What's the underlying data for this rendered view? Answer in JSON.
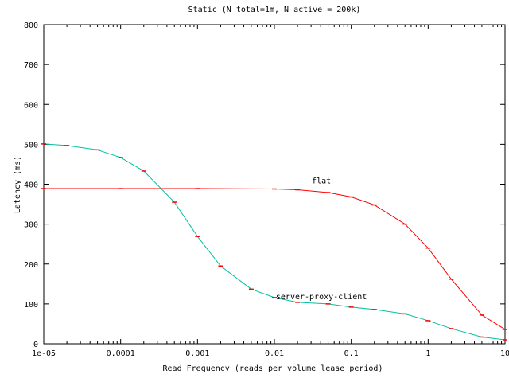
{
  "chart_data": {
    "type": "line",
    "title": "Static (N total=1m, N active = 200k)",
    "xlabel": "Read Frequency (reads per volume lease period)",
    "ylabel": "Latency (ms)",
    "x_scale": "log",
    "xlim": [
      1e-05,
      10
    ],
    "ylim": [
      0,
      800
    ],
    "x_ticks": [
      {
        "value": 1e-05,
        "label": "1e-05"
      },
      {
        "value": 0.0001,
        "label": "0.0001"
      },
      {
        "value": 0.001,
        "label": "0.001"
      },
      {
        "value": 0.01,
        "label": "0.01"
      },
      {
        "value": 0.1,
        "label": "0.1"
      },
      {
        "value": 1,
        "label": "1"
      },
      {
        "value": 10,
        "label": "10"
      }
    ],
    "y_ticks": [
      {
        "value": 0,
        "label": "0"
      },
      {
        "value": 100,
        "label": "100"
      },
      {
        "value": 200,
        "label": "200"
      },
      {
        "value": 300,
        "label": "300"
      },
      {
        "value": 400,
        "label": "400"
      },
      {
        "value": 500,
        "label": "500"
      },
      {
        "value": 600,
        "label": "600"
      },
      {
        "value": 700,
        "label": "700"
      },
      {
        "value": 800,
        "label": "800"
      }
    ],
    "grid": false,
    "series": [
      {
        "name": "flat",
        "color": "#ff0000",
        "label_anchor": {
          "x": 0.02,
          "y": 410
        },
        "points": [
          {
            "x": 1e-05,
            "y": 389
          },
          {
            "x": 0.0001,
            "y": 389
          },
          {
            "x": 0.001,
            "y": 389
          },
          {
            "x": 0.01,
            "y": 388
          },
          {
            "x": 0.02,
            "y": 386
          },
          {
            "x": 0.05,
            "y": 379
          },
          {
            "x": 0.1,
            "y": 368
          },
          {
            "x": 0.2,
            "y": 348
          },
          {
            "x": 0.5,
            "y": 300
          },
          {
            "x": 1,
            "y": 240
          },
          {
            "x": 2,
            "y": 162
          },
          {
            "x": 5,
            "y": 72
          },
          {
            "x": 10,
            "y": 36
          }
        ]
      },
      {
        "name": "server-proxy-client",
        "color": "#00c0a0",
        "marker_color": "#ff0000",
        "label_anchor": {
          "x": 0.02,
          "y": 120
        },
        "points": [
          {
            "x": 1e-05,
            "y": 501
          },
          {
            "x": 2e-05,
            "y": 497
          },
          {
            "x": 5e-05,
            "y": 486
          },
          {
            "x": 0.0001,
            "y": 467
          },
          {
            "x": 0.0002,
            "y": 433
          },
          {
            "x": 0.0005,
            "y": 355
          },
          {
            "x": 0.001,
            "y": 269
          },
          {
            "x": 0.002,
            "y": 195
          },
          {
            "x": 0.005,
            "y": 137
          },
          {
            "x": 0.01,
            "y": 116
          },
          {
            "x": 0.02,
            "y": 104
          },
          {
            "x": 0.05,
            "y": 100
          },
          {
            "x": 0.1,
            "y": 92
          },
          {
            "x": 0.2,
            "y": 86
          },
          {
            "x": 0.5,
            "y": 75
          },
          {
            "x": 1,
            "y": 58
          },
          {
            "x": 2,
            "y": 38
          },
          {
            "x": 5,
            "y": 17
          },
          {
            "x": 10,
            "y": 10
          }
        ]
      }
    ]
  }
}
